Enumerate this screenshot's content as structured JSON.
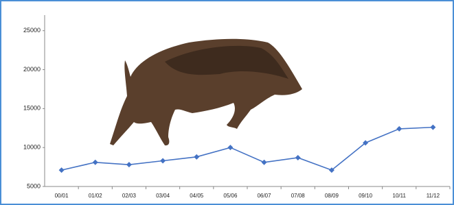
{
  "chart_data": {
    "type": "line",
    "categories": [
      "00/01",
      "01/02",
      "02/03",
      "03/04",
      "04/05",
      "05/06",
      "06/07",
      "07/08",
      "08/09",
      "09/10",
      "10/11",
      "11/12"
    ],
    "values": [
      7100,
      8100,
      7800,
      8300,
      8800,
      10000,
      8100,
      8700,
      7100,
      10600,
      12400,
      12600
    ],
    "color": "#4472c4",
    "ylim": [
      5000,
      27000
    ],
    "yticks": [
      5000,
      10000,
      15000,
      20000,
      25000
    ],
    "grid": false
  }
}
